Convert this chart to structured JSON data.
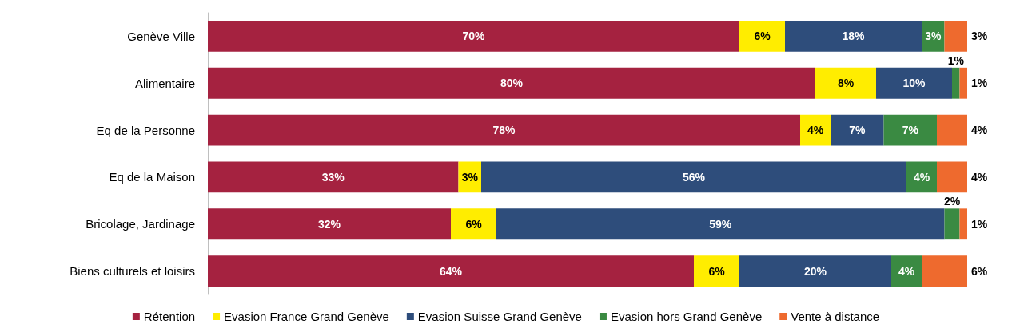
{
  "chart_data": {
    "type": "bar",
    "orientation": "horizontal",
    "stacked": true,
    "legend": "bottom",
    "categories": [
      "Genève Ville",
      "Alimentaire",
      "Eq de la Personne",
      "Eq de la Maison",
      "Bricolage, Jardinage",
      "Biens culturels et loisirs"
    ],
    "series": [
      {
        "name": "Rétention",
        "color": "#a52240",
        "values": [
          70,
          80,
          78,
          33,
          32,
          64
        ],
        "value_labels": [
          "70%",
          "80%",
          "78%",
          "33%",
          "32%",
          "64%"
        ]
      },
      {
        "name": "Evasion France Grand Genève",
        "color": "#ffed00",
        "values": [
          6,
          8,
          4,
          3,
          6,
          6
        ],
        "value_labels": [
          "6%",
          "8%",
          "4%",
          "3%",
          "6%",
          "6%"
        ]
      },
      {
        "name": "Evasion Suisse Grand Genève",
        "color": "#2e4d7b",
        "values": [
          18,
          10,
          7,
          56,
          59,
          20
        ],
        "value_labels": [
          "18%",
          "10%",
          "7%",
          "56%",
          "59%",
          "20%"
        ]
      },
      {
        "name": "Evasion hors Grand Genève",
        "color": "#3a8a42",
        "values": [
          3,
          1,
          7,
          4,
          2,
          4
        ],
        "value_labels": [
          "3%",
          "1%",
          "7%",
          "4%",
          "2%",
          "4%"
        ]
      },
      {
        "name": "Vente à distance",
        "color": "#ee6a2e",
        "values": [
          3,
          1,
          4,
          4,
          1,
          6
        ],
        "value_labels": [
          "3%",
          "1%",
          "4%",
          "4%",
          "1%",
          "6%"
        ]
      }
    ]
  }
}
